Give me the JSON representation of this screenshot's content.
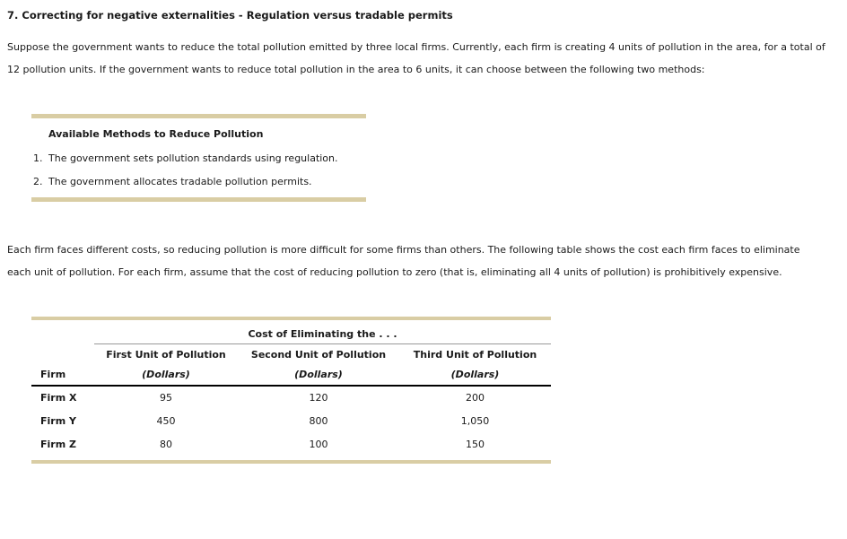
{
  "page": {
    "title": "7. Correcting for negative externalities - Regulation versus tradable permits",
    "intro_paragraph": "Suppose the government wants to reduce the total pollution emitted by three local firms. Currently, each firm is creating 4 units of pollution in the area, for a total of 12 pollution units. If the government wants to reduce total pollution in the area to 6 units, it can choose between the following two methods:",
    "costs_paragraph": "Each firm faces different costs, so reducing pollution is more difficult for some firms than others. The following table shows the cost each firm faces to eliminate each unit of pollution. For each firm, assume that the cost of reducing pollution to zero (that is, eliminating all 4 units of pollution) is prohibitively expensive."
  },
  "methods_box": {
    "heading": "Available Methods to Reduce Pollution",
    "items": [
      {
        "number": "1.",
        "text": "The government sets pollution standards using regulation."
      },
      {
        "number": "2.",
        "text": "The government allocates tradable pollution permits."
      }
    ]
  },
  "cost_table": {
    "group_header": "Cost of Eliminating the . . .",
    "firm_column_label": "Firm",
    "columns": [
      {
        "title": "First Unit of Pollution",
        "unit": "(Dollars)"
      },
      {
        "title": "Second Unit of Pollution",
        "unit": "(Dollars)"
      },
      {
        "title": "Third Unit of Pollution",
        "unit": "(Dollars)"
      }
    ],
    "rows": [
      {
        "firm": "Firm X",
        "first": "95",
        "second": "120",
        "third": "200"
      },
      {
        "firm": "Firm Y",
        "first": "450",
        "second": "800",
        "third": "1,050"
      },
      {
        "firm": "Firm Z",
        "first": "80",
        "second": "100",
        "third": "150"
      }
    ]
  },
  "colors": {
    "rule_tan": "#D9CDA4",
    "rule_gray": "#9a9a9a",
    "rule_black": "#000000",
    "text": "#1a1a1a",
    "background": "#ffffff"
  }
}
